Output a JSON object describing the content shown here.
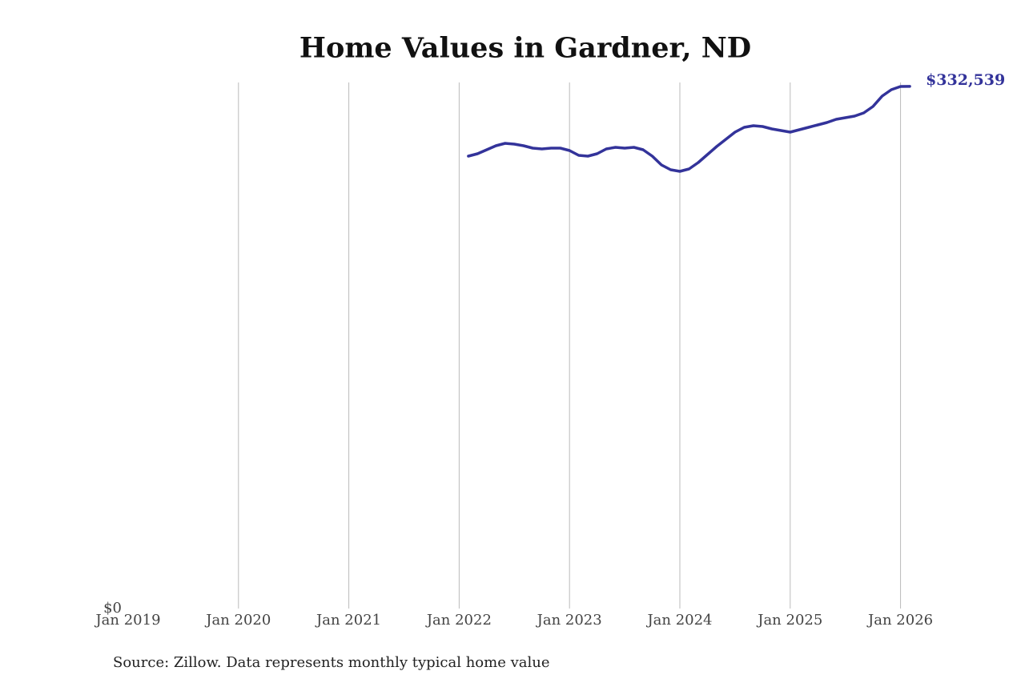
{
  "chart_data": {
    "type": "line",
    "title": "Home Values in Gardner, ND",
    "source": "Source: Zillow. Data represents monthly typical home value",
    "x": [
      "2022-02",
      "2022-03",
      "2022-04",
      "2022-05",
      "2022-06",
      "2022-07",
      "2022-08",
      "2022-09",
      "2022-10",
      "2022-11",
      "2022-12",
      "2023-01",
      "2023-02",
      "2023-03",
      "2023-04",
      "2023-05",
      "2023-06",
      "2023-07",
      "2023-08",
      "2023-09",
      "2023-10",
      "2023-11",
      "2023-12",
      "2024-01",
      "2024-02",
      "2024-03",
      "2024-04",
      "2024-05",
      "2024-06",
      "2024-07",
      "2024-08",
      "2024-09",
      "2024-10",
      "2024-11",
      "2024-12",
      "2025-01",
      "2025-02",
      "2025-03",
      "2025-04",
      "2025-05",
      "2025-06",
      "2025-07",
      "2025-08",
      "2025-09",
      "2025-10",
      "2025-11",
      "2025-12",
      "2026-01",
      "2026-02"
    ],
    "series": [
      {
        "name": "Gardner, ND",
        "color": "#33339a",
        "values": [
          288088,
          289617,
          292167,
          294716,
          296246,
          295736,
          294716,
          293187,
          292677,
          293187,
          293187,
          291657,
          288598,
          288088,
          289617,
          292677,
          293697,
          293187,
          293697,
          292167,
          288088,
          282479,
          279420,
          278400,
          279930,
          284009,
          289108,
          294207,
          298796,
          303385,
          306444,
          307464,
          306954,
          305424,
          304404,
          303385,
          304914,
          306444,
          307974,
          309503,
          311543,
          312563,
          313582,
          315622,
          319701,
          326330,
          330409,
          332448,
          332539
        ],
        "value_labels": [
          null,
          null,
          null,
          null,
          null,
          null,
          null,
          null,
          null,
          null,
          null,
          null,
          null,
          null,
          null,
          null,
          null,
          null,
          null,
          null,
          null,
          null,
          null,
          null,
          null,
          null,
          null,
          null,
          null,
          null,
          null,
          null,
          null,
          null,
          null,
          null,
          null,
          null,
          null,
          null,
          null,
          null,
          null,
          null,
          null,
          null,
          null,
          null,
          "$332,539"
        ]
      }
    ],
    "xlim": [
      "2019-01",
      "2026-06"
    ],
    "xticks": [
      {
        "value": "2019-01",
        "label": "Jan 2019"
      },
      {
        "value": "2020-01",
        "label": "Jan 2020"
      },
      {
        "value": "2021-01",
        "label": "Jan 2021"
      },
      {
        "value": "2022-01",
        "label": "Jan 2022"
      },
      {
        "value": "2023-01",
        "label": "Jan 2023"
      },
      {
        "value": "2024-01",
        "label": "Jan 2024"
      },
      {
        "value": "2025-01",
        "label": "Jan 2025"
      },
      {
        "value": "2026-01",
        "label": "Jan 2026"
      }
    ],
    "ylim": [
      0,
      335000
    ],
    "yticks": [
      {
        "value": 0,
        "label": "$0"
      }
    ],
    "grid": true
  }
}
